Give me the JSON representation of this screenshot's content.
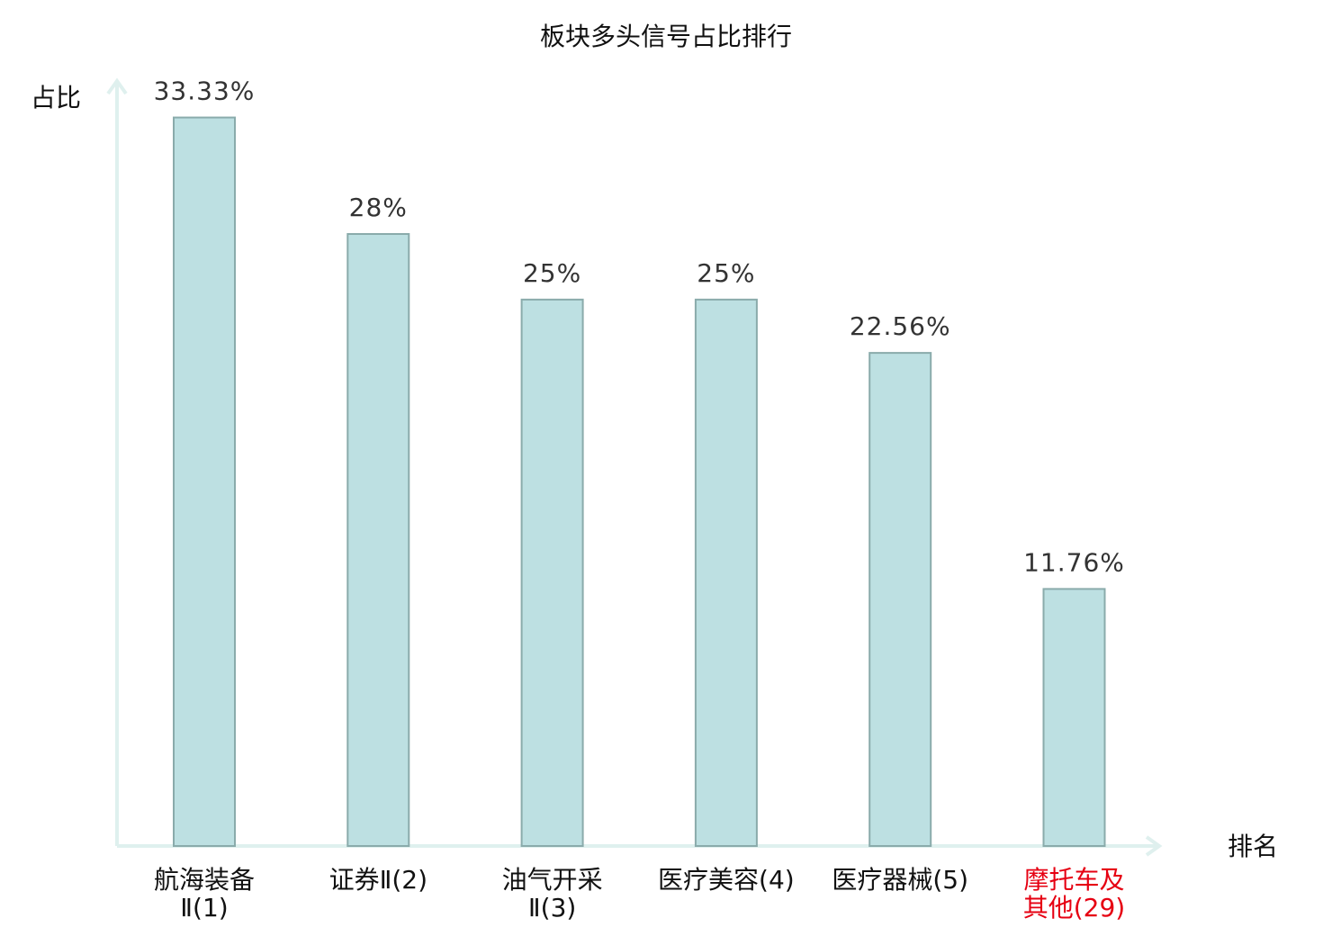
{
  "chart_data": {
    "type": "bar",
    "title": "板块多头信号占比排行",
    "y_label": "占比",
    "x_label": "排名",
    "categories": [
      "航海装备\nⅡ(1)",
      "证券Ⅱ(2)",
      "油气开采\nⅡ(3)",
      "医疗美容(4)",
      "医疗器械(5)",
      "摩托车及\n其他(29)"
    ],
    "values": [
      33.33,
      28,
      25,
      25,
      22.56,
      11.76
    ],
    "value_labels": [
      "33.33%",
      "28%",
      "25%",
      "25%",
      "22.56%",
      "11.76%"
    ],
    "color": "#bde0e2",
    "edge_color": "#8aabab",
    "label_colors": [
      "#111111",
      "#111111",
      "#111111",
      "#111111",
      "#111111",
      "#e60012"
    ],
    "ylim": [
      0,
      35
    ],
    "grid": false
  }
}
